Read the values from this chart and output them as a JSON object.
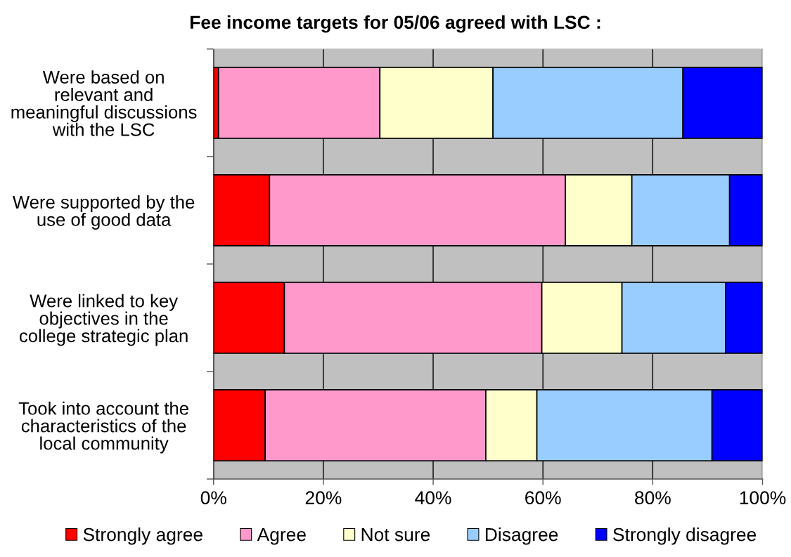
{
  "chart_data": {
    "type": "bar",
    "orientation": "horizontal",
    "stacked": true,
    "title": "Fee income targets for 05/06 agreed with LSC :",
    "categories": [
      "Were based on\nrelevant and\nmeaningful discussions\nwith the LSC",
      "Were supported by the\nuse of good data",
      "Were linked to key\nobjectives in the\ncollege strategic plan",
      "Took into account the\ncharacteristics of the\nlocal community"
    ],
    "series": [
      {
        "name": "Strongly agree",
        "color": "#ff0000",
        "values": [
          0.9,
          10.2,
          12.9,
          9.4
        ]
      },
      {
        "name": "Agree",
        "color": "#ff99cc",
        "values": [
          29.4,
          53.9,
          46.9,
          40.2
        ]
      },
      {
        "name": "Not sure",
        "color": "#ffffcc",
        "values": [
          20.6,
          12.1,
          14.6,
          9.3
        ]
      },
      {
        "name": "Disagree",
        "color": "#99ccff",
        "values": [
          34.6,
          17.8,
          18.9,
          31.9
        ]
      },
      {
        "name": "Strongly disagree",
        "color": "#0000ff",
        "values": [
          14.5,
          6.0,
          6.7,
          9.2
        ]
      }
    ],
    "xlim": [
      0,
      100
    ],
    "xticks": [
      {
        "value": 0,
        "label": "0%"
      },
      {
        "value": 20,
        "label": "20%"
      },
      {
        "value": 40,
        "label": "40%"
      },
      {
        "value": 60,
        "label": "60%"
      },
      {
        "value": 80,
        "label": "80%"
      },
      {
        "value": 100,
        "label": "100%"
      }
    ],
    "grid": "x",
    "legend": "bottom"
  }
}
